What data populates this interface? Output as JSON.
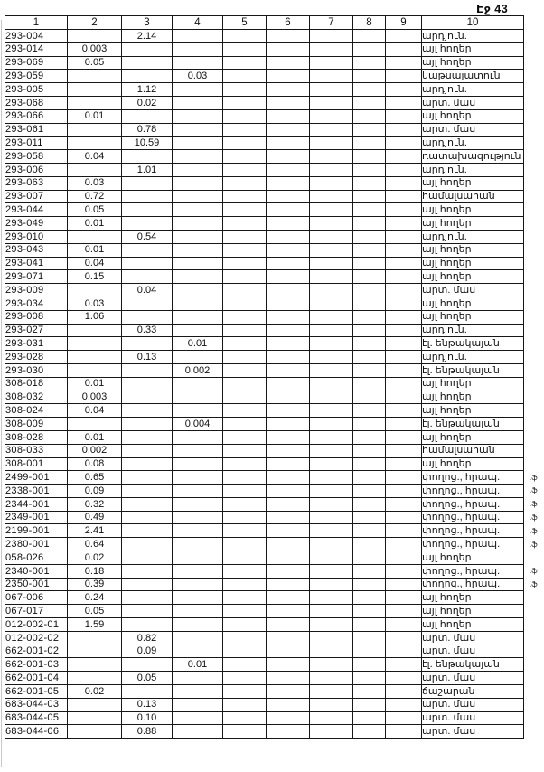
{
  "page": {
    "header_label": "Էջ 43"
  },
  "table": {
    "columns": [
      "1",
      "2",
      "3",
      "4",
      "5",
      "6",
      "7",
      "8",
      "9",
      "10"
    ],
    "rows": [
      {
        "cells": [
          "293-004",
          "",
          "2.14",
          "",
          "",
          "",
          "",
          "",
          "",
          "արդյուն."
        ],
        "mark": ""
      },
      {
        "cells": [
          "293-014",
          "0.003",
          "",
          "",
          "",
          "",
          "",
          "",
          "",
          "այլ հողեր"
        ],
        "mark": ""
      },
      {
        "cells": [
          "293-069",
          "0.05",
          "",
          "",
          "",
          "",
          "",
          "",
          "",
          "այլ հողեր"
        ],
        "mark": ""
      },
      {
        "cells": [
          "293-059",
          "",
          "",
          "0.03",
          "",
          "",
          "",
          "",
          "",
          "կաթսայատուն"
        ],
        "mark": ""
      },
      {
        "cells": [
          "293-005",
          "",
          "1.12",
          "",
          "",
          "",
          "",
          "",
          "",
          "արդյուն."
        ],
        "mark": ""
      },
      {
        "cells": [
          "293-068",
          "",
          "0.02",
          "",
          "",
          "",
          "",
          "",
          "",
          "արտ. մաս"
        ],
        "mark": ""
      },
      {
        "cells": [
          "293-066",
          "0.01",
          "",
          "",
          "",
          "",
          "",
          "",
          "",
          "այլ հողեր"
        ],
        "mark": ""
      },
      {
        "cells": [
          "293-061",
          "",
          "0.78",
          "",
          "",
          "",
          "",
          "",
          "",
          "արտ. մաս"
        ],
        "mark": ""
      },
      {
        "cells": [
          "293-011",
          "",
          "10.59",
          "",
          "",
          "",
          "",
          "",
          "",
          "արդյուն."
        ],
        "mark": ""
      },
      {
        "cells": [
          "293-058",
          "0.04",
          "",
          "",
          "",
          "",
          "",
          "",
          "",
          "դատախազություն"
        ],
        "mark": ""
      },
      {
        "cells": [
          "293-006",
          "",
          "1.01",
          "",
          "",
          "",
          "",
          "",
          "",
          "արդյուն."
        ],
        "mark": ""
      },
      {
        "cells": [
          "293-063",
          "0.03",
          "",
          "",
          "",
          "",
          "",
          "",
          "",
          "այլ հողեր"
        ],
        "mark": ""
      },
      {
        "cells": [
          "293-007",
          "0.72",
          "",
          "",
          "",
          "",
          "",
          "",
          "",
          "համալսարան"
        ],
        "mark": ""
      },
      {
        "cells": [
          "293-044",
          "0.05",
          "",
          "",
          "",
          "",
          "",
          "",
          "",
          "այլ հողեր"
        ],
        "mark": ""
      },
      {
        "cells": [
          "293-049",
          "0.01",
          "",
          "",
          "",
          "",
          "",
          "",
          "",
          "այլ հողեր"
        ],
        "mark": ""
      },
      {
        "cells": [
          "293-010",
          "",
          "0.54",
          "",
          "",
          "",
          "",
          "",
          "",
          "արդյուն."
        ],
        "mark": ""
      },
      {
        "cells": [
          "293-043",
          "0.01",
          "",
          "",
          "",
          "",
          "",
          "",
          "",
          "այլ հողեր"
        ],
        "mark": ""
      },
      {
        "cells": [
          "293-041",
          "0.04",
          "",
          "",
          "",
          "",
          "",
          "",
          "",
          "այլ հողեր"
        ],
        "mark": ""
      },
      {
        "cells": [
          "293-071",
          "0.15",
          "",
          "",
          "",
          "",
          "",
          "",
          "",
          "այլ հողեր"
        ],
        "mark": ""
      },
      {
        "cells": [
          "293-009",
          "",
          "0.04",
          "",
          "",
          "",
          "",
          "",
          "",
          "արտ. մաս"
        ],
        "mark": ""
      },
      {
        "cells": [
          "293-034",
          "0.03",
          "",
          "",
          "",
          "",
          "",
          "",
          "",
          "այլ հողեր"
        ],
        "mark": ""
      },
      {
        "cells": [
          "293-008",
          "1.06",
          "",
          "",
          "",
          "",
          "",
          "",
          "",
          "այլ հողեր"
        ],
        "mark": ""
      },
      {
        "cells": [
          "293-027",
          "",
          "0.33",
          "",
          "",
          "",
          "",
          "",
          "",
          "արդյուն."
        ],
        "mark": ""
      },
      {
        "cells": [
          "293-031",
          "",
          "",
          "0.01",
          "",
          "",
          "",
          "",
          "",
          "էլ. ենթակայան"
        ],
        "mark": ""
      },
      {
        "cells": [
          "293-028",
          "",
          "0.13",
          "",
          "",
          "",
          "",
          "",
          "",
          "արդյուն."
        ],
        "mark": ""
      },
      {
        "cells": [
          "293-030",
          "",
          "",
          "0.002",
          "",
          "",
          "",
          "",
          "",
          "էլ. ենթակայան"
        ],
        "mark": ""
      },
      {
        "cells": [
          "308-018",
          "0.01",
          "",
          "",
          "",
          "",
          "",
          "",
          "",
          "այլ հողեր"
        ],
        "mark": ""
      },
      {
        "cells": [
          "308-032",
          "0.003",
          "",
          "",
          "",
          "",
          "",
          "",
          "",
          "այլ հողեր"
        ],
        "mark": ""
      },
      {
        "cells": [
          "308-024",
          "0.04",
          "",
          "",
          "",
          "",
          "",
          "",
          "",
          "այլ հողեր"
        ],
        "mark": ""
      },
      {
        "cells": [
          "308-009",
          "",
          "",
          "0.004",
          "",
          "",
          "",
          "",
          "",
          "էլ. ենթակայան"
        ],
        "mark": ""
      },
      {
        "cells": [
          "308-028",
          "0.01",
          "",
          "",
          "",
          "",
          "",
          "",
          "",
          "այլ հողեր"
        ],
        "mark": ""
      },
      {
        "cells": [
          "308-033",
          "0.002",
          "",
          "",
          "",
          "",
          "",
          "",
          "",
          "համալսարան"
        ],
        "mark": ""
      },
      {
        "cells": [
          "308-001",
          "0.08",
          "",
          "",
          "",
          "",
          "",
          "",
          "",
          "այլ հողեր"
        ],
        "mark": ""
      },
      {
        "cells": [
          "2499-001",
          "0.65",
          "",
          "",
          "",
          "",
          "",
          "",
          "",
          "փողոց., հրապ."
        ],
        "mark": ".ֆ"
      },
      {
        "cells": [
          "2338-001",
          "0.09",
          "",
          "",
          "",
          "",
          "",
          "",
          "",
          "փողոց., հրապ."
        ],
        "mark": ".ֆ"
      },
      {
        "cells": [
          "2344-001",
          "0.32",
          "",
          "",
          "",
          "",
          "",
          "",
          "",
          "փողոց., հրապ."
        ],
        "mark": ".ֆ"
      },
      {
        "cells": [
          "2349-001",
          "0.49",
          "",
          "",
          "",
          "",
          "",
          "",
          "",
          "փողոց., հրապ."
        ],
        "mark": ".ֆ"
      },
      {
        "cells": [
          "2199-001",
          "2.41",
          "",
          "",
          "",
          "",
          "",
          "",
          "",
          "փողոց., հրապ."
        ],
        "mark": ".ֆ"
      },
      {
        "cells": [
          "2380-001",
          "0.64",
          "",
          "",
          "",
          "",
          "",
          "",
          "",
          "փողոց., հրապ."
        ],
        "mark": ".ֆ"
      },
      {
        "cells": [
          "058-026",
          "0.02",
          "",
          "",
          "",
          "",
          "",
          "",
          "",
          "այլ հողեր"
        ],
        "mark": ""
      },
      {
        "cells": [
          "2340-001",
          "0.18",
          "",
          "",
          "",
          "",
          "",
          "",
          "",
          "փողոց., հրապ."
        ],
        "mark": ".ֆ"
      },
      {
        "cells": [
          "2350-001",
          "0.39",
          "",
          "",
          "",
          "",
          "",
          "",
          "",
          "փողոց., հրապ."
        ],
        "mark": ".ֆ"
      },
      {
        "cells": [
          "067-006",
          "0.24",
          "",
          "",
          "",
          "",
          "",
          "",
          "",
          "այլ հողեր"
        ],
        "mark": ""
      },
      {
        "cells": [
          "067-017",
          "0.05",
          "",
          "",
          "",
          "",
          "",
          "",
          "",
          "այլ հողեր"
        ],
        "mark": ""
      },
      {
        "cells": [
          "012-002-01",
          "1.59",
          "",
          "",
          "",
          "",
          "",
          "",
          "",
          "այլ հողեր"
        ],
        "mark": ""
      },
      {
        "cells": [
          "012-002-02",
          "",
          "0.82",
          "",
          "",
          "",
          "",
          "",
          "",
          "արտ. մաս"
        ],
        "mark": ""
      },
      {
        "cells": [
          "662-001-02",
          "",
          "0.09",
          "",
          "",
          "",
          "",
          "",
          "",
          "արտ. մաս"
        ],
        "mark": ""
      },
      {
        "cells": [
          "662-001-03",
          "",
          "",
          "0.01",
          "",
          "",
          "",
          "",
          "",
          "էլ. ենթակայան"
        ],
        "mark": ""
      },
      {
        "cells": [
          "662-001-04",
          "",
          "0.05",
          "",
          "",
          "",
          "",
          "",
          "",
          "արտ. մաս"
        ],
        "mark": ""
      },
      {
        "cells": [
          "662-001-05",
          "0.02",
          "",
          "",
          "",
          "",
          "",
          "",
          "",
          "ճաշարան"
        ],
        "mark": ""
      },
      {
        "cells": [
          "683-044-03",
          "",
          "0.13",
          "",
          "",
          "",
          "",
          "",
          "",
          "արտ. մաս"
        ],
        "mark": ""
      },
      {
        "cells": [
          "683-044-05",
          "",
          "0.10",
          "",
          "",
          "",
          "",
          "",
          "",
          "արտ. մաս"
        ],
        "mark": ""
      },
      {
        "cells": [
          "683-044-06",
          "",
          "0.88",
          "",
          "",
          "",
          "",
          "",
          "",
          "արտ. մաս"
        ],
        "mark": ""
      }
    ]
  }
}
